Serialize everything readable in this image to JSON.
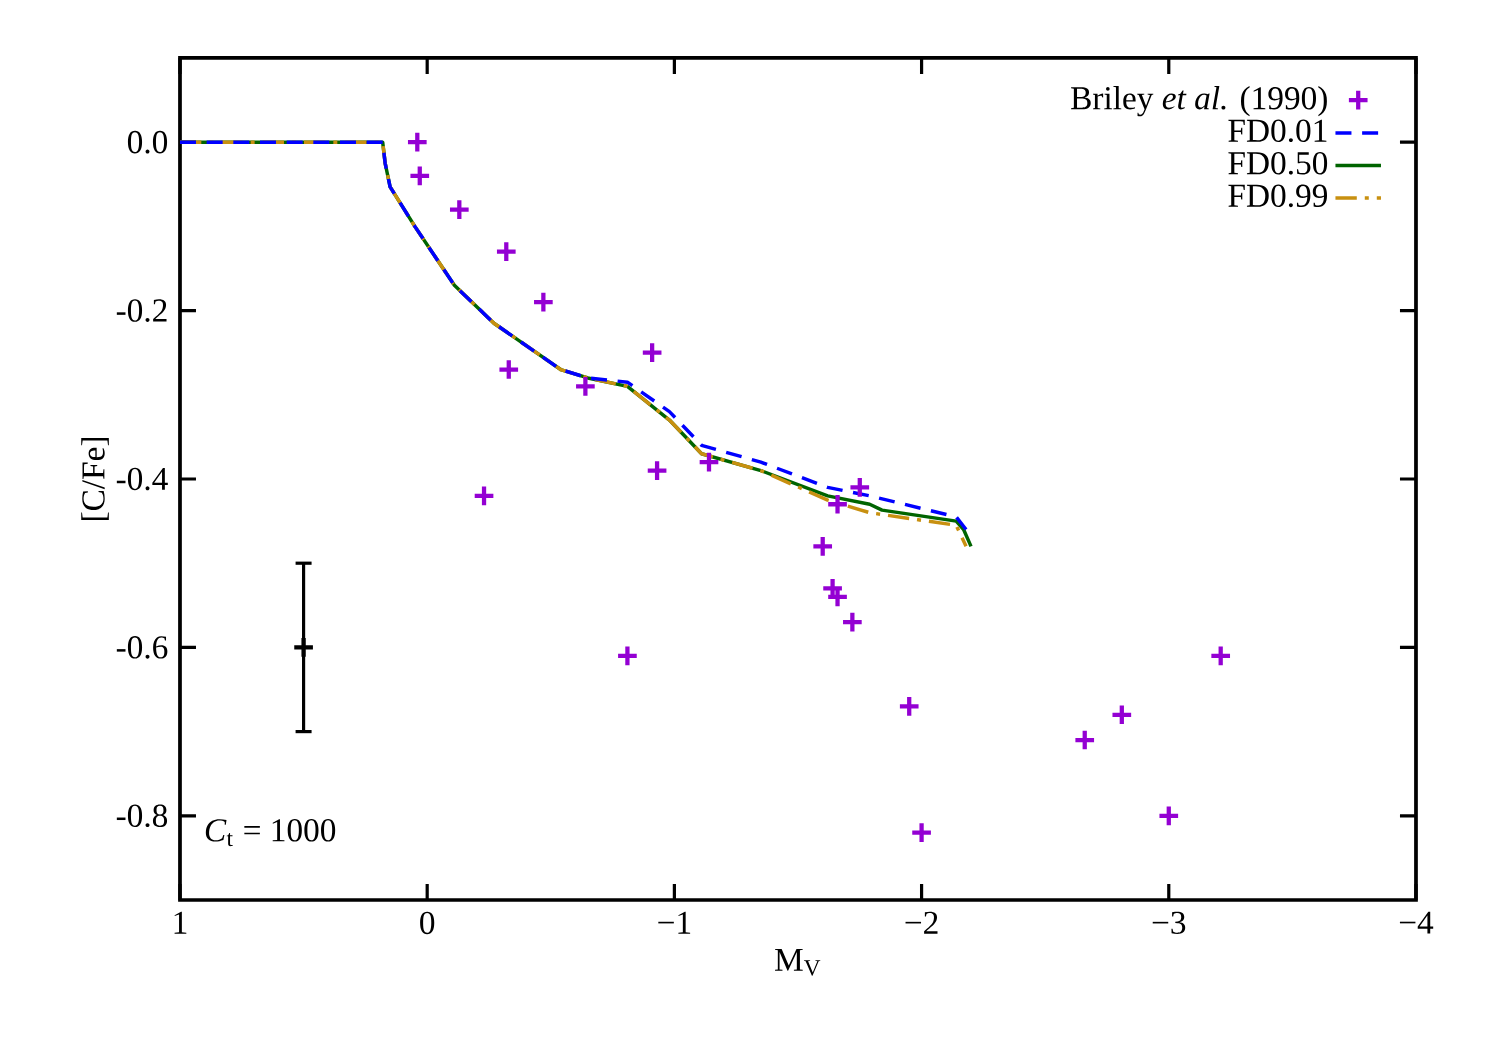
{
  "chart_data": {
    "type": "scatter",
    "xlabel": "M$_{V}$",
    "ylabel": "[C/Fe]",
    "xlim": [
      1,
      -4
    ],
    "ylim": [
      -0.9,
      0.1
    ],
    "xticks": [
      1,
      0,
      {
        "value": -1,
        "label": "−1"
      },
      {
        "value": -2,
        "label": "−2"
      },
      {
        "value": -3,
        "label": "−3"
      },
      {
        "value": -4,
        "label": "−4"
      }
    ],
    "yticks": [
      {
        "value": 0,
        "label": "0.0"
      },
      {
        "value": -0.2,
        "label": "-0.2"
      },
      {
        "value": -0.4,
        "label": "-0.4"
      },
      {
        "value": -0.6,
        "label": "-0.6"
      },
      {
        "value": -0.8,
        "label": "-0.8"
      }
    ],
    "legend": "top right",
    "grid": false,
    "annotations": [
      "*C*$_{t}$ = 1000"
    ],
    "series": [
      {
        "name": "Briley *et al.* (1990)",
        "marker": "cross",
        "color": "#9400d3",
        "x": [
          0.04,
          0.03,
          -0.13,
          -0.32,
          -0.47,
          -0.33,
          -0.64,
          -0.91,
          -0.23,
          -0.93,
          -1.14,
          -1.75,
          -1.66,
          -1.6,
          -1.64,
          -1.66,
          -1.72,
          -0.81,
          -1.95,
          -2.0,
          -3.21,
          -2.81,
          -2.66,
          -3.0
        ],
        "values": [
          0.0,
          -0.04,
          -0.08,
          -0.13,
          -0.19,
          -0.27,
          -0.29,
          -0.25,
          -0.42,
          -0.39,
          -0.38,
          -0.41,
          -0.43,
          -0.48,
          -0.53,
          -0.54,
          -0.57,
          -0.61,
          -0.67,
          -0.82,
          -0.61,
          -0.68,
          -0.71,
          -0.8
        ]
      },
      {
        "name": "FD0.01",
        "type": "line",
        "marker": "none",
        "line_style": "dashed",
        "color": "#0000ff",
        "x": [
          1,
          0.18,
          0.17,
          0.15,
          0.05,
          -0.11,
          -0.27,
          -0.54,
          -0.65,
          -0.81,
          -0.98,
          -1.11,
          -1.35,
          -1.62,
          -1.79,
          -2.14,
          -2.18
        ],
        "values": [
          0,
          0,
          -0.025,
          -0.053,
          -0.1,
          -0.17,
          -0.215,
          -0.27,
          -0.28,
          -0.285,
          -0.32,
          -0.36,
          -0.38,
          -0.41,
          -0.42,
          -0.445,
          -0.46
        ]
      },
      {
        "name": "FD0.50",
        "type": "line",
        "marker": "none",
        "line_style": "solid",
        "color": "#006400",
        "x": [
          1,
          0.18,
          0.17,
          0.15,
          0.05,
          -0.11,
          -0.27,
          -0.54,
          -0.65,
          -0.81,
          -0.98,
          -1.11,
          -1.35,
          -1.62,
          -1.79,
          -1.84,
          -2.14,
          -2.17,
          -2.2
        ],
        "values": [
          0,
          0,
          -0.025,
          -0.053,
          -0.1,
          -0.17,
          -0.215,
          -0.27,
          -0.28,
          -0.29,
          -0.33,
          -0.37,
          -0.39,
          -0.42,
          -0.43,
          -0.437,
          -0.45,
          -0.46,
          -0.48
        ]
      },
      {
        "name": "FD0.99",
        "type": "line",
        "marker": "none",
        "line_style": "dashdotted",
        "color": "#c89010",
        "x": [
          1,
          0.18,
          0.17,
          0.15,
          0.05,
          -0.11,
          -0.27,
          -0.54,
          -0.65,
          -0.81,
          -0.98,
          -1.11,
          -1.35,
          -1.62,
          -1.79,
          -2.14,
          -2.18
        ],
        "values": [
          0,
          0,
          -0.025,
          -0.053,
          -0.1,
          -0.17,
          -0.215,
          -0.27,
          -0.28,
          -0.29,
          -0.33,
          -0.37,
          -0.39,
          -0.425,
          -0.44,
          -0.455,
          -0.48
        ]
      },
      {
        "marker": "cross",
        "color": "#000000",
        "x": [
          0.5
        ],
        "values": [
          -0.6
        ],
        "errors": [
          0.1
        ]
      }
    ]
  }
}
